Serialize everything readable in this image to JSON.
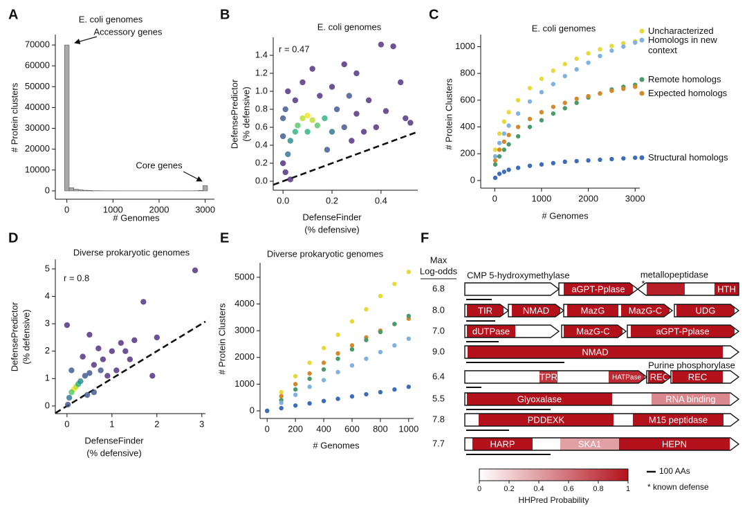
{
  "chart_data": [
    {
      "panel": "A",
      "type": "histogram",
      "title": "E. coli genomes",
      "annotations": [
        "Accessory genes",
        "Core genes"
      ],
      "xlabel": [
        "# Genomes"
      ],
      "ylabel": [
        "# Protein clusters"
      ],
      "color": "#a9a9a9",
      "bins": [
        -50,
        50,
        150,
        250,
        350,
        450,
        550,
        650,
        750,
        850,
        950,
        1050,
        1150,
        1250,
        1350,
        1450,
        1550,
        1650,
        1750,
        1850,
        1950,
        2050,
        2150,
        2250,
        2350,
        2450,
        2550,
        2650,
        2750,
        2850,
        2950,
        3050
      ],
      "counts": [
        70000,
        1500,
        800,
        500,
        300,
        200,
        100,
        80,
        60,
        50,
        40,
        30,
        30,
        20,
        20,
        20,
        20,
        20,
        20,
        20,
        20,
        20,
        20,
        20,
        30,
        30,
        40,
        50,
        80,
        200,
        2500
      ],
      "xlim": [
        -250,
        3200
      ],
      "ylim": [
        -4000,
        75000
      ],
      "xticks": [
        0,
        1000,
        2000,
        3000
      ],
      "yticks": [
        0,
        10000,
        20000,
        30000,
        40000,
        50000,
        60000,
        70000
      ]
    },
    {
      "panel": "B",
      "type": "scatter",
      "title": "E. coli genomes",
      "annotation": "r = 0.47",
      "xlabel": [
        "DefenseFinder",
        "(% defensive)"
      ],
      "ylabel": [
        "DefensePredictor",
        "(% defensive)"
      ],
      "identity_line": true,
      "x": [
        0.1,
        0.08,
        0.12,
        0.06,
        0.14,
        0.05,
        0.1,
        0.17,
        0.03,
        0.02,
        0.2,
        0.22,
        0.0,
        0.0,
        0.0,
        0.01,
        0.25,
        0.3,
        0.28,
        0.15,
        0.05,
        0.2,
        0.35,
        0.38,
        0.42,
        0.48,
        0.5,
        0.45,
        0.4,
        0.3,
        0.25,
        0.12,
        0.08,
        0.02,
        0.18,
        0.33,
        0.52,
        0.27,
        0.01,
        0.03
      ],
      "y": [
        0.73,
        0.7,
        0.68,
        0.62,
        0.62,
        0.55,
        0.55,
        0.7,
        0.45,
        0.3,
        0.55,
        0.8,
        0.7,
        0.5,
        0.2,
        0.1,
        0.6,
        0.75,
        0.45,
        0.95,
        0.9,
        1.05,
        0.9,
        0.6,
        0.78,
        1.1,
        0.7,
        1.5,
        1.52,
        1.2,
        1.3,
        1.25,
        1.1,
        1.0,
        0.35,
        0.55,
        0.65,
        0.95,
        0.8,
        0.02
      ],
      "colors": [
        "#f0e51f",
        "#b8de29",
        "#b8de29",
        "#55c667",
        "#55c667",
        "#29af7f",
        "#29af7f",
        "#29af7f",
        "#238a8d",
        "#2d708e",
        "#2d708e",
        "#3b528b",
        "#3b528b",
        "#3b528b",
        "#482878",
        "#482878",
        "#3b528b",
        "#482878",
        "#482878",
        "#482878",
        "#482878",
        "#482878",
        "#482878",
        "#482878",
        "#482878",
        "#482878",
        "#482878",
        "#482878",
        "#482878",
        "#482878",
        "#482878",
        "#482878",
        "#482878",
        "#482878",
        "#3b528b",
        "#482878",
        "#482878",
        "#3b528b",
        "#3b528b",
        "#482878"
      ],
      "xlim": [
        -0.04,
        0.55
      ],
      "ylim": [
        -0.1,
        1.6
      ],
      "xticks": [
        {
          "value": 0,
          "label": "0.0"
        },
        {
          "value": 0.2,
          "label": "0.2"
        },
        {
          "value": 0.4,
          "label": "0.4"
        }
      ],
      "yticks": [
        {
          "value": 0,
          "label": "0.0"
        },
        {
          "value": 0.2,
          "label": "0.2"
        },
        {
          "value": 0.4,
          "label": "0.4"
        },
        {
          "value": 0.6,
          "label": "0.6"
        },
        {
          "value": 0.8,
          "label": "0.8"
        },
        {
          "value": 1,
          "label": "1.0"
        },
        {
          "value": 1.2,
          "label": "1.2"
        },
        {
          "value": 1.4,
          "label": "1.4"
        }
      ]
    },
    {
      "panel": "C",
      "type": "scatter",
      "title": "E. coli genomes",
      "xlabel": [
        "# Genomes"
      ],
      "ylabel": [
        "# Protein Clusters"
      ],
      "legend": "right",
      "x": [
        10,
        100,
        200,
        300,
        500,
        750,
        1000,
        1250,
        1500,
        1750,
        2000,
        2250,
        2500,
        2750,
        3000
      ],
      "series": [
        {
          "name": "Uncharacterized",
          "color": "#e8d93a",
          "values": [
            230,
            350,
            440,
            510,
            600,
            690,
            760,
            820,
            870,
            910,
            950,
            980,
            1005,
            1025,
            1040
          ]
        },
        {
          "name": "Homologs in new context",
          "color": "#7fb2e0",
          "values": [
            180,
            280,
            350,
            410,
            500,
            590,
            660,
            720,
            780,
            830,
            880,
            930,
            970,
            1000,
            1030
          ]
        },
        {
          "name": "Remote homologs",
          "color": "#4a9a6a",
          "values": [
            120,
            180,
            230,
            270,
            330,
            400,
            450,
            500,
            540,
            580,
            620,
            650,
            680,
            700,
            715
          ]
        },
        {
          "name": "Expected homologs",
          "color": "#d48a2a",
          "values": [
            150,
            230,
            290,
            340,
            400,
            460,
            510,
            550,
            580,
            610,
            630,
            650,
            670,
            685,
            700
          ]
        },
        {
          "name": "Structural homologs",
          "color": "#3d6cb8",
          "values": [
            20,
            50,
            65,
            80,
            95,
            110,
            120,
            130,
            140,
            145,
            150,
            155,
            160,
            165,
            170
          ]
        }
      ],
      "xlim": [
        -300,
        3100
      ],
      "ylim": [
        -57,
        1090
      ],
      "xticks": [
        0,
        1000,
        2000,
        3000
      ],
      "yticks": [
        0,
        200,
        400,
        600,
        800,
        1000
      ]
    },
    {
      "panel": "D",
      "type": "scatter",
      "title": "Diverse prokaryotic genomes",
      "annotation": "r = 0.8",
      "xlabel": [
        "DefenseFinder",
        "(% defensive)"
      ],
      "ylabel": [
        "DefensePredictor",
        "(% defensive)"
      ],
      "identity_line": true,
      "x": [
        0.15,
        0.2,
        0.1,
        0.25,
        0.3,
        0.05,
        0.4,
        0.5,
        0.6,
        0.8,
        1.0,
        1.2,
        0.7,
        0.9,
        1.1,
        1.4,
        1.7,
        2.85,
        0.0,
        1.5,
        0.35,
        0.5,
        1.3,
        2.0,
        0.02,
        0.6,
        0.1,
        1.9,
        0.75,
        0.45
      ],
      "y": [
        0.6,
        0.7,
        0.5,
        0.8,
        0.9,
        0.3,
        1.1,
        1.2,
        1.5,
        1.7,
        2.0,
        2.3,
        2.1,
        1.1,
        1.3,
        1.7,
        3.8,
        4.95,
        2.95,
        2.4,
        1.8,
        2.6,
        2.0,
        2.5,
        0.05,
        0.5,
        1.3,
        1.1,
        1.3,
        0.4
      ],
      "colors": [
        "#f0e51f",
        "#b8de29",
        "#55c667",
        "#29af7f",
        "#238a8d",
        "#2d708e",
        "#3b528b",
        "#3b528b",
        "#482878",
        "#482878",
        "#482878",
        "#482878",
        "#482878",
        "#482878",
        "#482878",
        "#482878",
        "#482878",
        "#482878",
        "#482878",
        "#482878",
        "#482878",
        "#482878",
        "#482878",
        "#482878",
        "#3b528b",
        "#3b528b",
        "#3b528b",
        "#482878",
        "#3b528b",
        "#3b528b"
      ],
      "xlim": [
        -0.26,
        3.08
      ],
      "ylim": [
        -0.28,
        5.35
      ],
      "xticks": [
        0,
        1,
        2,
        3
      ],
      "yticks": [
        0,
        1,
        2,
        3,
        4,
        5
      ]
    },
    {
      "panel": "E",
      "type": "scatter",
      "title": "Diverse prokaryotic genomes",
      "xlabel": [
        "# Genomes"
      ],
      "ylabel": [
        "# Protein Clusters"
      ],
      "x": [
        0,
        100,
        200,
        300,
        400,
        500,
        600,
        700,
        800,
        900,
        1000
      ],
      "series": [
        {
          "color": "#e8d93a",
          "values": [
            0,
            700,
            1300,
            1800,
            2350,
            2850,
            3350,
            3800,
            4300,
            4750,
            5200
          ]
        },
        {
          "color": "#d48a2a",
          "values": [
            0,
            550,
            1000,
            1400,
            1800,
            2150,
            2450,
            2750,
            3000,
            3250,
            3450
          ]
        },
        {
          "color": "#4a9a6a",
          "values": [
            0,
            400,
            800,
            1200,
            1550,
            1950,
            2300,
            2650,
            2950,
            3250,
            3550
          ]
        },
        {
          "color": "#7fb2e0",
          "values": [
            0,
            300,
            600,
            900,
            1150,
            1450,
            1700,
            1950,
            2200,
            2450,
            2700
          ]
        },
        {
          "color": "#3d6cb8",
          "values": [
            0,
            100,
            200,
            280,
            370,
            450,
            540,
            620,
            700,
            800,
            900
          ]
        }
      ],
      "xlim": [
        -50,
        1035
      ],
      "ylim": [
        -285,
        5540
      ],
      "xticks": [
        0,
        200,
        400,
        600,
        800,
        1000
      ],
      "yticks": [
        0,
        1000,
        2000,
        3000,
        4000,
        5000
      ]
    }
  ],
  "domain_figure": {
    "panel": "F",
    "header": [
      "Max",
      "Log-odds"
    ],
    "annotations": [
      "CMP 5-hydroxymethylase",
      "metallopeptidase",
      "Purine phosphorylase"
    ],
    "known_defense_marker": "*",
    "rows": [
      {
        "log_odds": "6.8",
        "domains": [
          {
            "label": "aGPT-Pplase",
            "prob": 1
          },
          {
            "prob": 0.95
          },
          {
            "label": "HTH",
            "prob": 1
          }
        ]
      },
      {
        "log_odds": "8.0",
        "domains": [
          {
            "label": "TIR",
            "prob": 1
          },
          {
            "label": "NMAD",
            "prob": 1
          },
          {
            "label": "MazG",
            "prob": 1
          },
          {
            "label": "MazG-C",
            "prob": 1
          },
          {
            "label": "UDG",
            "prob": 1
          }
        ]
      },
      {
        "log_odds": "7.0",
        "domains": [
          {
            "label": "dUTPase",
            "prob": 1
          },
          {
            "label": "MazG-C",
            "prob": 1
          },
          {
            "label": "aGPT-Pplase",
            "prob": 1
          }
        ]
      },
      {
        "log_odds": "9.0",
        "domains": [
          {
            "label": "NMAD",
            "prob": 1
          }
        ]
      },
      {
        "log_odds": "6.4",
        "domains": [
          {
            "label": "TPR",
            "prob": 0.85
          },
          {
            "label": "HATPase",
            "prob": 0.9
          },
          {
            "label": "REC",
            "prob": 1
          },
          {
            "label": "REC",
            "prob": 1
          }
        ]
      },
      {
        "log_odds": "5.5",
        "domains": [
          {
            "label": "Glyoxalase",
            "prob": 1
          },
          {
            "label": "RNA binding",
            "prob": 0.5
          }
        ]
      },
      {
        "log_odds": "7.8",
        "domains": [
          {
            "label": "PDDEXK",
            "prob": 1
          },
          {
            "label": "M15 peptidase",
            "prob": 1
          }
        ]
      },
      {
        "log_odds": "7.7",
        "domains": [
          {
            "label": "HARP",
            "prob": 1
          },
          {
            "label": "SKA1",
            "prob": 0.4
          },
          {
            "label": "HEPN",
            "prob": 1
          }
        ]
      }
    ],
    "colorbar": {
      "label": "HHPred Probability",
      "ticks": [
        0,
        0.2,
        0.4,
        0.6,
        0.8,
        1
      ]
    },
    "scale_bar": "100 AAs",
    "known_defense_note": "* known defense"
  }
}
